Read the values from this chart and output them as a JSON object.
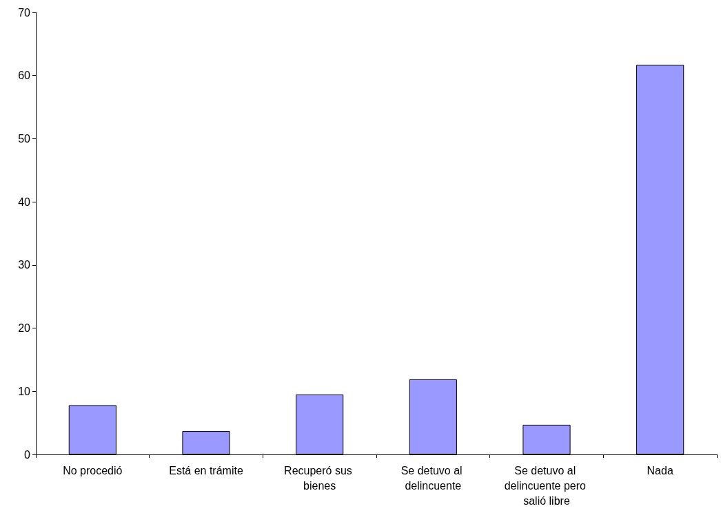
{
  "chart_data": {
    "type": "bar",
    "categories": [
      "No procedió",
      "Está en trámite",
      "Recuperó sus bienes",
      "Se detuvo al delincuente",
      "Se detuvo al delincuente pero salió libre",
      "Nada"
    ],
    "values": [
      7.8,
      3.7,
      9.5,
      11.9,
      4.7,
      61.7
    ],
    "color": "#9999ff",
    "ylim": [
      0,
      70
    ],
    "yticks": [
      0,
      10,
      20,
      30,
      40,
      50,
      60,
      70
    ],
    "grid": false
  }
}
